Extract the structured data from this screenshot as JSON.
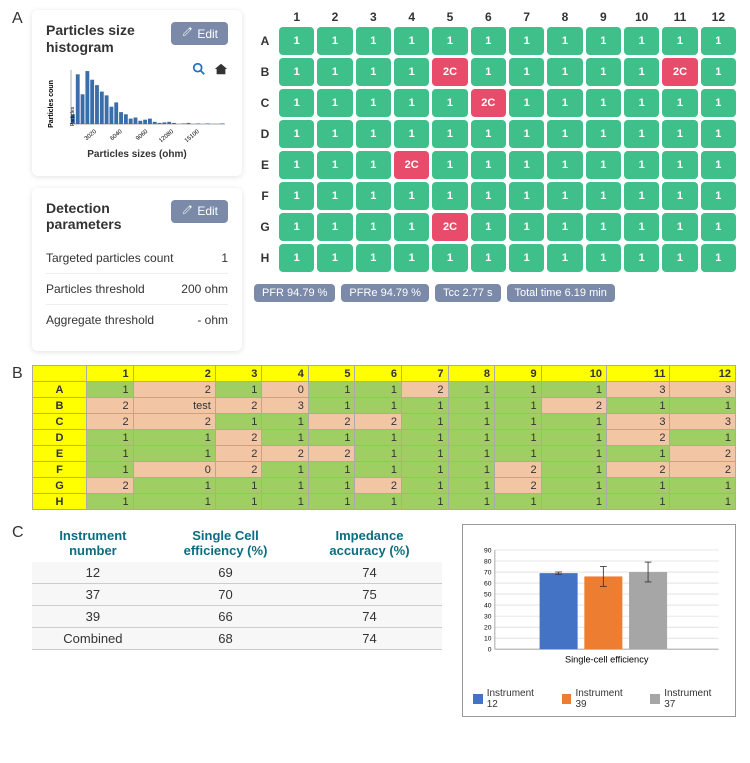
{
  "colors": {
    "well_ok": "#3fbf8a",
    "well_bad": "#e94b6a",
    "edit_btn": "#7a8aa8",
    "pill": "#7a8aa8",
    "histogram_bar": "#3b6da8",
    "icon_blue": "#1f74c4",
    "tableB_hdr": "#ffff00",
    "tableB_green": "#9fce63",
    "tableB_peach": "#f2c6a4",
    "tableC_header": "#0b6d80"
  },
  "panel_labels": {
    "A": "A",
    "B": "B",
    "C": "C"
  },
  "histogram_card": {
    "title": "Particles size histogram",
    "edit_label": "Edit",
    "xlabel": "Particles sizes (ohm)",
    "ylabel": "Particles coun",
    "xticks": [
      "3020",
      "6040",
      "9060",
      "12080",
      "15100"
    ],
    "bars": [
      0.18,
      0.92,
      0.55,
      0.98,
      0.82,
      0.72,
      0.6,
      0.53,
      0.32,
      0.4,
      0.22,
      0.18,
      0.1,
      0.12,
      0.06,
      0.08,
      0.1,
      0.04,
      0.02,
      0.03,
      0.04,
      0.02,
      0,
      0.01,
      0.02,
      0,
      0.01,
      0,
      0.01,
      0,
      0,
      0.01
    ],
    "mini_label": "Particles"
  },
  "detection_card": {
    "title": "Detection parameters",
    "edit_label": "Edit",
    "rows": [
      {
        "label": "Targeted particles count",
        "value": "1"
      },
      {
        "label": "Particles threshold",
        "value": "200 ohm"
      },
      {
        "label": "Aggregate threshold",
        "value": "- ohm"
      }
    ]
  },
  "plate": {
    "cols": [
      "1",
      "2",
      "3",
      "4",
      "5",
      "6",
      "7",
      "8",
      "9",
      "10",
      "11",
      "12"
    ],
    "rows": [
      "A",
      "B",
      "C",
      "D",
      "E",
      "F",
      "G",
      "H"
    ],
    "cells": [
      [
        "1",
        "1",
        "1",
        "1",
        "1",
        "1",
        "1",
        "1",
        "1",
        "1",
        "1",
        "1"
      ],
      [
        "1",
        "1",
        "1",
        "1",
        "2C",
        "1",
        "1",
        "1",
        "1",
        "1",
        "2C",
        "1"
      ],
      [
        "1",
        "1",
        "1",
        "1",
        "1",
        "2C",
        "1",
        "1",
        "1",
        "1",
        "1",
        "1"
      ],
      [
        "1",
        "1",
        "1",
        "1",
        "1",
        "1",
        "1",
        "1",
        "1",
        "1",
        "1",
        "1"
      ],
      [
        "1",
        "1",
        "1",
        "2C",
        "1",
        "1",
        "1",
        "1",
        "1",
        "1",
        "1",
        "1"
      ],
      [
        "1",
        "1",
        "1",
        "1",
        "1",
        "1",
        "1",
        "1",
        "1",
        "1",
        "1",
        "1"
      ],
      [
        "1",
        "1",
        "1",
        "1",
        "2C",
        "1",
        "1",
        "1",
        "1",
        "1",
        "1",
        "1"
      ],
      [
        "1",
        "1",
        "1",
        "1",
        "1",
        "1",
        "1",
        "1",
        "1",
        "1",
        "1",
        "1"
      ]
    ]
  },
  "stats": [
    "PFR 94.79 %",
    "PFRe 94.79 %",
    "Tcc 2.77 s",
    "Total time 6.19 min"
  ],
  "countsB": {
    "cols": [
      "1",
      "2",
      "3",
      "4",
      "5",
      "6",
      "7",
      "8",
      "9",
      "10",
      "11",
      "12"
    ],
    "rows": [
      "A",
      "B",
      "C",
      "D",
      "E",
      "F",
      "G",
      "H"
    ],
    "cells": [
      [
        "1",
        "2",
        "1",
        "0",
        "1",
        "1",
        "2",
        "1",
        "1",
        "1",
        "3",
        "3"
      ],
      [
        "2",
        "test",
        "2",
        "3",
        "1",
        "1",
        "1",
        "1",
        "1",
        "2",
        "1",
        "1"
      ],
      [
        "2",
        "2",
        "1",
        "1",
        "2",
        "2",
        "1",
        "1",
        "1",
        "1",
        "3",
        "3"
      ],
      [
        "1",
        "1",
        "2",
        "1",
        "1",
        "1",
        "1",
        "1",
        "1",
        "1",
        "2",
        "1"
      ],
      [
        "1",
        "1",
        "2",
        "2",
        "2",
        "1",
        "1",
        "1",
        "1",
        "1",
        "1",
        "2"
      ],
      [
        "1",
        "0",
        "2",
        "1",
        "1",
        "1",
        "1",
        "1",
        "2",
        "1",
        "2",
        "2"
      ],
      [
        "2",
        "1",
        "1",
        "1",
        "1",
        "2",
        "1",
        "1",
        "2",
        "1",
        "1",
        "1"
      ],
      [
        "1",
        "1",
        "1",
        "1",
        "1",
        "1",
        "1",
        "1",
        "1",
        "1",
        "1",
        "1"
      ]
    ]
  },
  "tableC": {
    "headers": [
      "Instrument number",
      "Single Cell efficiency (%)",
      "Impedance accuracy (%)"
    ],
    "rows": [
      [
        "12",
        "69",
        "74"
      ],
      [
        "37",
        "70",
        "75"
      ],
      [
        "39",
        "66",
        "74"
      ],
      [
        "Combined",
        "68",
        "74"
      ]
    ]
  },
  "barchartC": {
    "title": "Single-cell efficiency",
    "ylim": [
      0,
      90
    ],
    "ytick_step": 10,
    "grid_color": "#d0d0d0",
    "bars": [
      {
        "label": "Instrument 12",
        "value": 69,
        "err": 1,
        "color": "#4472c4"
      },
      {
        "label": "Instrument 39",
        "value": 66,
        "err": 9,
        "color": "#ed7d31"
      },
      {
        "label": "Instrument 37",
        "value": 70,
        "err": 9,
        "color": "#a6a6a6"
      }
    ]
  }
}
